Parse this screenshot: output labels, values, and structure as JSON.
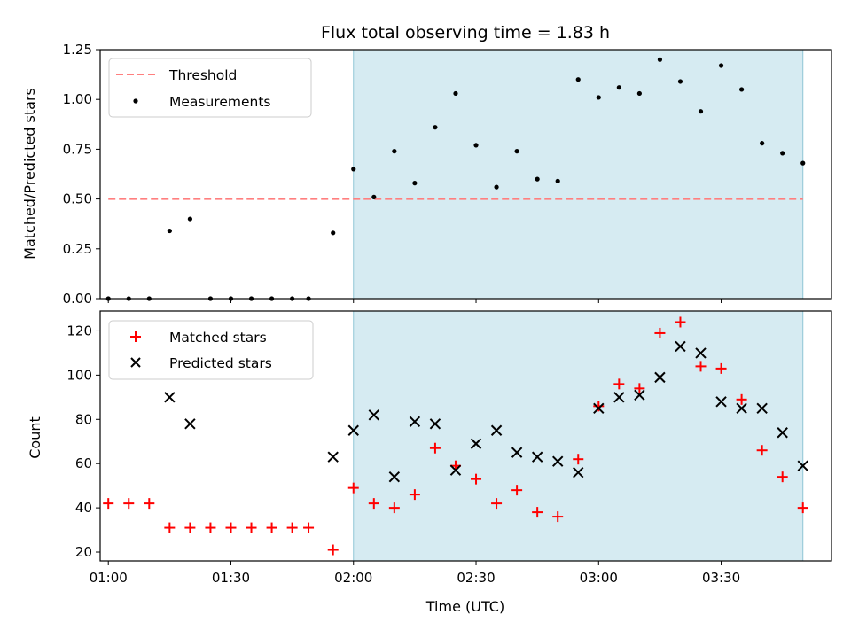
{
  "chart_data": [
    {
      "type": "scatter",
      "title": "Flux total observing time = 1.83 h",
      "xlabel": "",
      "ylabel": "Matched/Predicted stars",
      "xlim": [
        "00:58",
        "03:57"
      ],
      "ylim": [
        0,
        1.25
      ],
      "yticks": [
        "0.00",
        "0.25",
        "0.50",
        "0.75",
        "1.00",
        "1.25"
      ],
      "grid": false,
      "legend": "top-left",
      "shaded_region": {
        "x": [
          "02:00",
          "03:50"
        ],
        "color": "#add8e6"
      },
      "series": [
        {
          "name": "Threshold",
          "kind": "dashed-line",
          "color": "#ff7f7f",
          "x": [
            "01:00",
            "03:50"
          ],
          "y": [
            0.5,
            0.5
          ]
        },
        {
          "name": "Measurements",
          "kind": "dot",
          "color": "#000000",
          "x": [
            "01:00",
            "01:05",
            "01:10",
            "01:15",
            "01:20",
            "01:25",
            "01:30",
            "01:35",
            "01:40",
            "01:45",
            "01:49",
            "01:55",
            "02:00",
            "02:05",
            "02:10",
            "02:15",
            "02:20",
            "02:25",
            "02:30",
            "02:35",
            "02:40",
            "02:45",
            "02:50",
            "02:55",
            "03:00",
            "03:05",
            "03:10",
            "03:15",
            "03:20",
            "03:25",
            "03:30",
            "03:35",
            "03:40",
            "03:45",
            "03:50"
          ],
          "y": [
            0,
            0,
            0,
            0.34,
            0.4,
            0,
            0,
            0,
            0,
            0,
            0,
            0.33,
            0.65,
            0.51,
            0.74,
            0.58,
            0.86,
            1.03,
            0.77,
            0.56,
            0.74,
            0.6,
            0.59,
            1.1,
            1.01,
            1.06,
            1.03,
            1.2,
            1.09,
            0.94,
            1.17,
            1.05,
            0.78,
            0.73,
            0.68
          ]
        }
      ]
    },
    {
      "type": "scatter",
      "title": "",
      "xlabel": "Time (UTC)",
      "ylabel": "Count",
      "xlim": [
        "00:58",
        "03:57"
      ],
      "ylim": [
        16,
        129
      ],
      "xticks": [
        "01:00",
        "01:30",
        "02:00",
        "02:30",
        "03:00",
        "03:30"
      ],
      "yticks": [
        "20",
        "40",
        "60",
        "80",
        "100",
        "120"
      ],
      "grid": false,
      "legend": "top-left",
      "shaded_region": {
        "x": [
          "02:00",
          "03:50"
        ],
        "color": "#add8e6"
      },
      "series": [
        {
          "name": "Matched stars",
          "kind": "plus",
          "color": "#ff0000",
          "x": [
            "01:00",
            "01:05",
            "01:10",
            "01:15",
            "01:20",
            "01:25",
            "01:30",
            "01:35",
            "01:40",
            "01:45",
            "01:49",
            "01:55",
            "02:00",
            "02:05",
            "02:10",
            "02:15",
            "02:20",
            "02:25",
            "02:30",
            "02:35",
            "02:40",
            "02:45",
            "02:50",
            "02:55",
            "03:00",
            "03:05",
            "03:10",
            "03:15",
            "03:20",
            "03:25",
            "03:30",
            "03:35",
            "03:40",
            "03:45",
            "03:50"
          ],
          "y": [
            42,
            42,
            42,
            31,
            31,
            31,
            31,
            31,
            31,
            31,
            31,
            21,
            49,
            42,
            40,
            46,
            67,
            59,
            53,
            42,
            48,
            38,
            36,
            62,
            86,
            96,
            94,
            119,
            124,
            104,
            103,
            89,
            66,
            54,
            40
          ]
        },
        {
          "name": "Predicted stars",
          "kind": "x",
          "color": "#000000",
          "x": [
            "01:15",
            "01:20",
            "01:55",
            "02:00",
            "02:05",
            "02:10",
            "02:15",
            "02:20",
            "02:25",
            "02:30",
            "02:35",
            "02:40",
            "02:45",
            "02:50",
            "02:55",
            "03:00",
            "03:05",
            "03:10",
            "03:15",
            "03:20",
            "03:25",
            "03:30",
            "03:35",
            "03:40",
            "03:45",
            "03:50"
          ],
          "y": [
            90,
            78,
            63,
            75,
            82,
            54,
            79,
            78,
            57,
            69,
            75,
            65,
            63,
            61,
            56,
            85,
            90,
            91,
            99,
            113,
            110,
            88,
            85,
            85,
            74,
            59
          ]
        }
      ]
    }
  ]
}
